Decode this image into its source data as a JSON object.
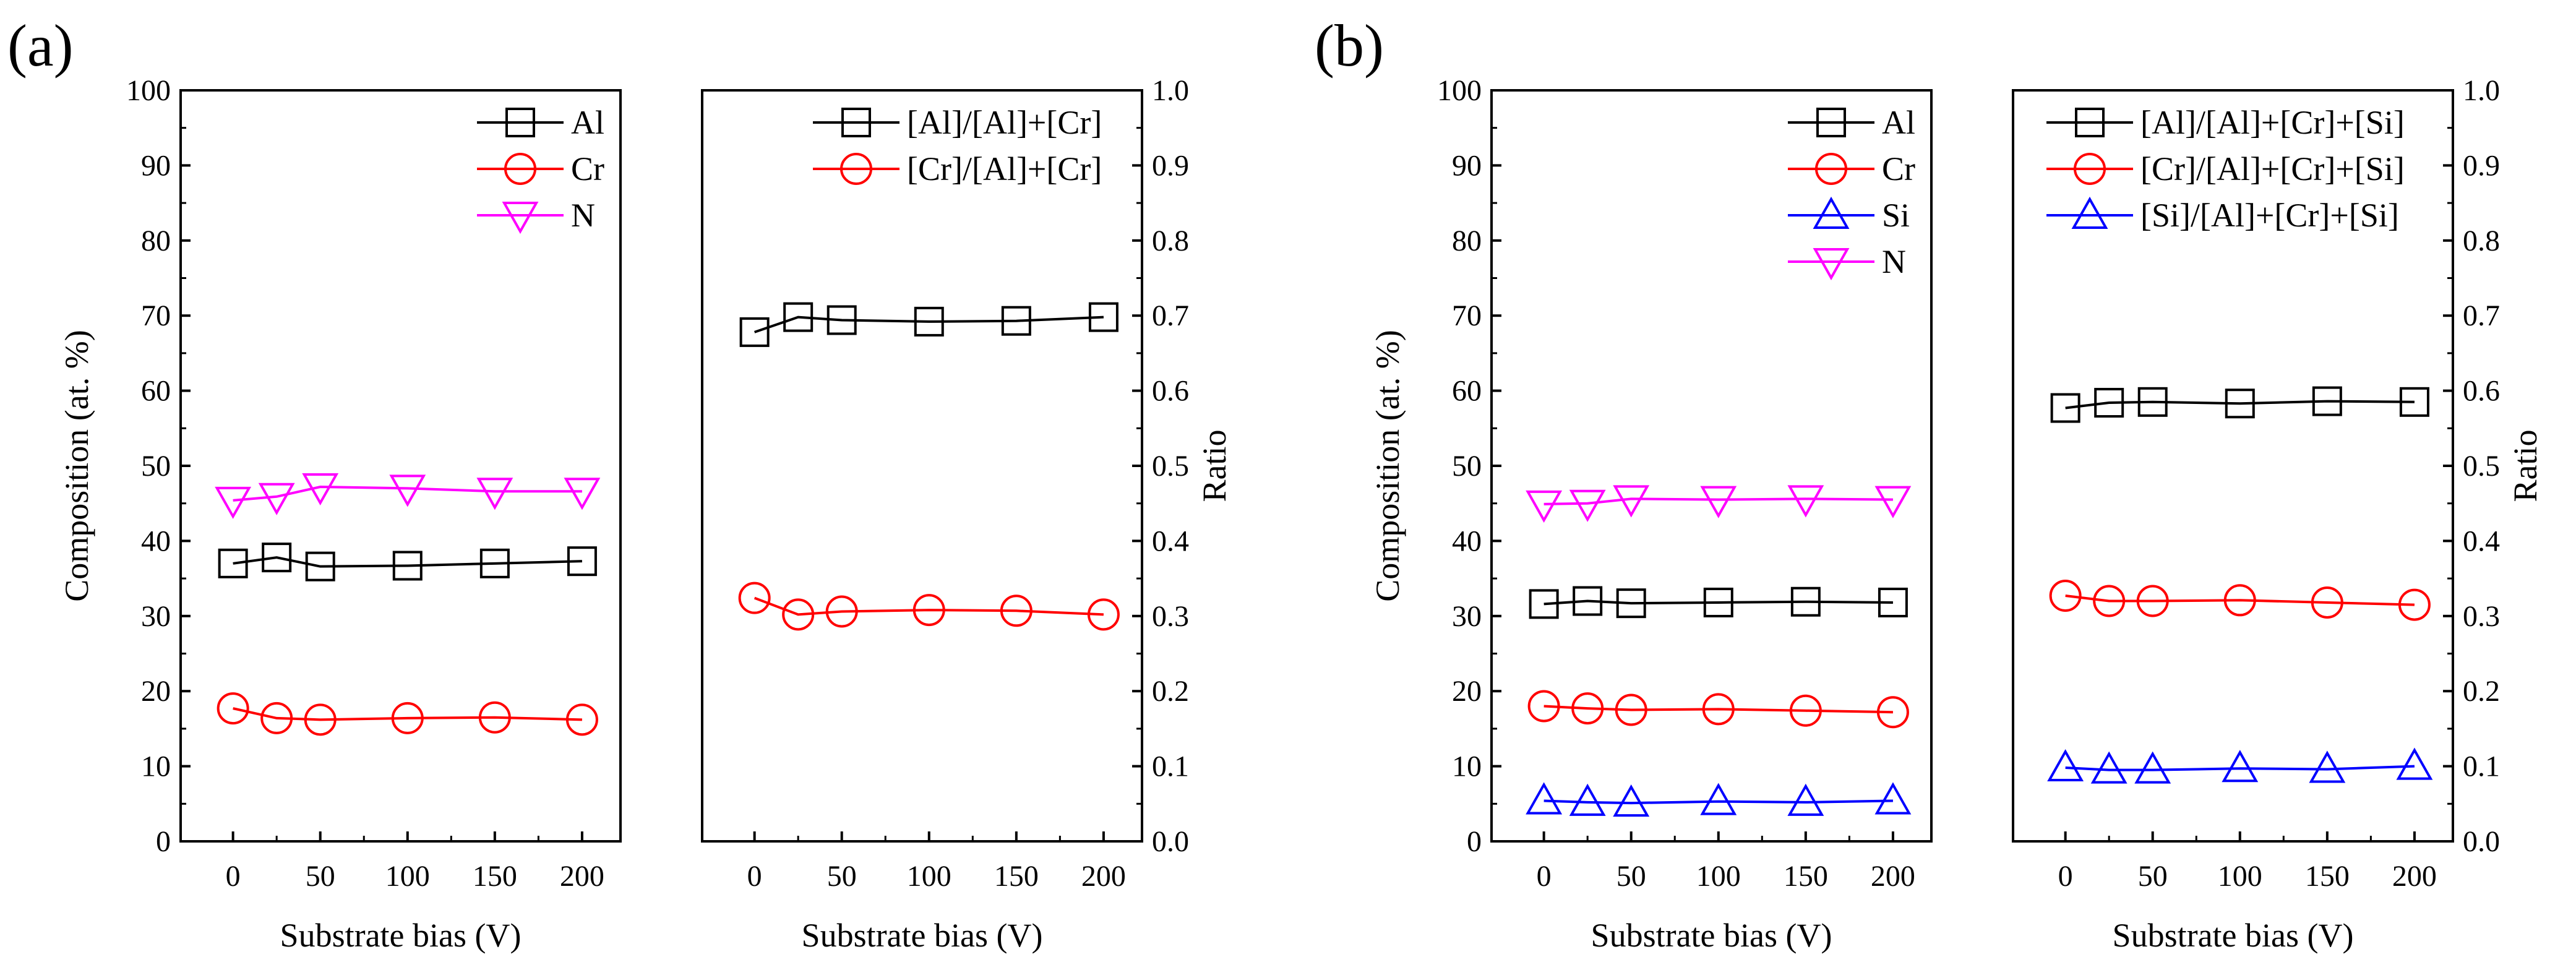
{
  "panel_labels": [
    "(a)",
    "(b)"
  ],
  "chart_data": [
    {
      "panel": "(a)",
      "position": "left",
      "type": "line",
      "xlabel": "Substrate bias (V)",
      "ylabel": "Composition (at. %)",
      "x": [
        0,
        25,
        50,
        100,
        150,
        200
      ],
      "xticks": [
        0,
        50,
        100,
        150,
        200
      ],
      "xlim": [
        -30,
        222
      ],
      "ylim": [
        0,
        100
      ],
      "yticks": [
        0,
        10,
        20,
        30,
        40,
        50,
        60,
        70,
        80,
        90,
        100
      ],
      "axis_side": "left",
      "legend": "top-right",
      "series": [
        {
          "name": "Al",
          "color": "#000000",
          "marker": "square",
          "values": [
            37.0,
            37.8,
            36.6,
            36.7,
            37.0,
            37.3
          ]
        },
        {
          "name": "Cr",
          "color": "#ff0000",
          "marker": "circle",
          "values": [
            17.7,
            16.4,
            16.2,
            16.4,
            16.5,
            16.2
          ]
        },
        {
          "name": "N",
          "color": "#ff00ff",
          "marker": "triangle-down",
          "values": [
            45.4,
            45.9,
            47.2,
            47.0,
            46.6,
            46.6
          ]
        }
      ]
    },
    {
      "panel": "(a)",
      "position": "right",
      "type": "line",
      "xlabel": "Substrate bias (V)",
      "ylabel": "Ratio",
      "x": [
        0,
        25,
        50,
        100,
        150,
        200
      ],
      "xticks": [
        0,
        50,
        100,
        150,
        200
      ],
      "xlim": [
        -30,
        222
      ],
      "ylim": [
        0,
        1.0
      ],
      "yticks": [
        0.0,
        0.1,
        0.2,
        0.3,
        0.4,
        0.5,
        0.6,
        0.7,
        0.8,
        0.9,
        1.0
      ],
      "axis_side": "right",
      "legend": "top-right",
      "series": [
        {
          "name": "[Al]/[Al]+[Cr]",
          "color": "#000000",
          "marker": "square",
          "values": [
            0.678,
            0.698,
            0.694,
            0.692,
            0.693,
            0.698
          ]
        },
        {
          "name": "[Cr]/[Al]+[Cr]",
          "color": "#ff0000",
          "marker": "circle",
          "values": [
            0.324,
            0.302,
            0.306,
            0.308,
            0.307,
            0.302
          ]
        }
      ]
    },
    {
      "panel": "(b)",
      "position": "left",
      "type": "line",
      "xlabel": "Substrate bias (V)",
      "ylabel": "Composition (at. %)",
      "x": [
        0,
        25,
        50,
        100,
        150,
        200
      ],
      "xticks": [
        0,
        50,
        100,
        150,
        200
      ],
      "xlim": [
        -30,
        222
      ],
      "ylim": [
        0,
        100
      ],
      "yticks": [
        0,
        10,
        20,
        30,
        40,
        50,
        60,
        70,
        80,
        90,
        100
      ],
      "axis_side": "left",
      "legend": "top-right",
      "series": [
        {
          "name": "Al",
          "color": "#000000",
          "marker": "square",
          "values": [
            31.6,
            32.0,
            31.7,
            31.8,
            31.9,
            31.8
          ]
        },
        {
          "name": "Cr",
          "color": "#ff0000",
          "marker": "circle",
          "values": [
            18.0,
            17.7,
            17.5,
            17.6,
            17.4,
            17.2
          ]
        },
        {
          "name": "Si",
          "color": "#0000ff",
          "marker": "triangle-up",
          "values": [
            5.4,
            5.2,
            5.1,
            5.3,
            5.2,
            5.4
          ]
        },
        {
          "name": "N",
          "color": "#ff00ff",
          "marker": "triangle-down",
          "values": [
            44.9,
            45.0,
            45.6,
            45.5,
            45.6,
            45.5
          ]
        }
      ]
    },
    {
      "panel": "(b)",
      "position": "right",
      "type": "line",
      "xlabel": "Substrate bias (V)",
      "ylabel": "Ratio",
      "x": [
        0,
        25,
        50,
        100,
        150,
        200
      ],
      "xticks": [
        0,
        50,
        100,
        150,
        200
      ],
      "xlim": [
        -30,
        222
      ],
      "ylim": [
        0,
        1.0
      ],
      "yticks": [
        0.0,
        0.1,
        0.2,
        0.3,
        0.4,
        0.5,
        0.6,
        0.7,
        0.8,
        0.9,
        1.0
      ],
      "axis_side": "right",
      "legend": "top-right",
      "series": [
        {
          "name": "[Al]/[Al]+[Cr]+[Si]",
          "color": "#000000",
          "marker": "square",
          "values": [
            0.577,
            0.584,
            0.585,
            0.583,
            0.586,
            0.585
          ]
        },
        {
          "name": "[Cr]/[Al]+[Cr]+[Si]",
          "color": "#ff0000",
          "marker": "circle",
          "values": [
            0.327,
            0.32,
            0.32,
            0.321,
            0.318,
            0.315
          ]
        },
        {
          "name": "[Si]/[Al]+[Cr]+[Si]",
          "color": "#0000ff",
          "marker": "triangle-up",
          "values": [
            0.098,
            0.095,
            0.095,
            0.097,
            0.096,
            0.1
          ]
        }
      ]
    }
  ]
}
